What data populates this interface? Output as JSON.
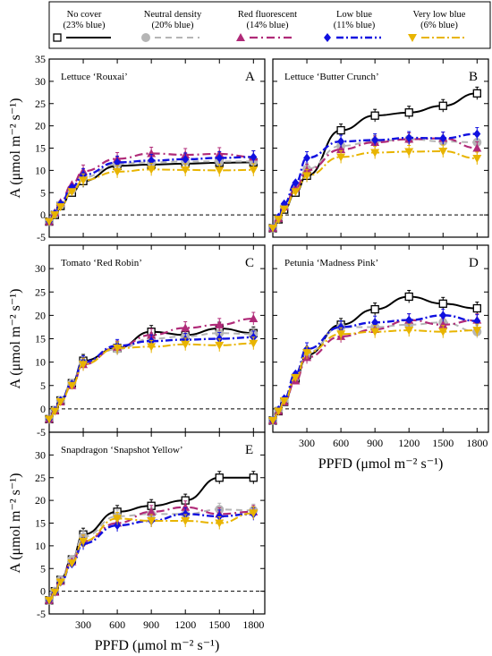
{
  "legend": {
    "entries": [
      {
        "name": "No cover",
        "sub": "(23% blue)",
        "color": "#000000",
        "marker": "square"
      },
      {
        "name": "Neutral density",
        "sub": "(20% blue)",
        "color": "#b5b5b5",
        "marker": "circle"
      },
      {
        "name": "Red fluorescent",
        "sub": "(14% blue)",
        "color": "#b02a78",
        "marker": "triangle-up"
      },
      {
        "name": "Low blue",
        "sub": "(11% blue)",
        "color": "#1010e0",
        "marker": "diamond"
      },
      {
        "name": "Very low blue",
        "sub": "(6% blue)",
        "color": "#e8b400",
        "marker": "triangle-down"
      }
    ]
  },
  "chart_data": [
    {
      "type": "line",
      "panel": "A",
      "title": "Lettuce ‘Rouxai’",
      "ylabel": "A (μmol m⁻² s⁻¹)",
      "xlabel": "",
      "ylim": [
        -5,
        35
      ],
      "xlim": [
        0,
        1900
      ],
      "x": [
        0,
        50,
        100,
        200,
        300,
        600,
        900,
        1200,
        1500,
        1800
      ],
      "series": [
        {
          "name": "No cover",
          "values": [
            -1.5,
            0.0,
            2.0,
            5.0,
            7.6,
            11.0,
            11.3,
            11.5,
            11.7,
            11.8
          ]
        },
        {
          "name": "Neutral density",
          "values": [
            -1.5,
            0.2,
            2.3,
            5.6,
            8.4,
            11.5,
            11.8,
            12.0,
            12.0,
            12.0
          ]
        },
        {
          "name": "Red fluorescent",
          "values": [
            -1.5,
            0.5,
            2.8,
            6.8,
            9.8,
            12.6,
            13.8,
            13.5,
            13.7,
            13.0
          ]
        },
        {
          "name": "Low blue",
          "values": [
            -1.5,
            0.3,
            2.5,
            6.2,
            9.0,
            11.8,
            12.2,
            12.5,
            12.8,
            13.0
          ]
        },
        {
          "name": "Very low blue",
          "values": [
            -1.5,
            0.0,
            1.8,
            5.2,
            7.8,
            9.7,
            10.2,
            10.1,
            10.0,
            10.1
          ]
        }
      ]
    },
    {
      "type": "line",
      "panel": "B",
      "title": "Lettuce ‘Butter Crunch’",
      "ylabel": "",
      "xlabel": "",
      "ylim": [
        -5,
        35
      ],
      "xlim": [
        0,
        1900
      ],
      "x": [
        0,
        50,
        100,
        200,
        300,
        600,
        900,
        1200,
        1500,
        1800
      ],
      "series": [
        {
          "name": "No cover",
          "values": [
            -3.0,
            -1.0,
            1.2,
            5.0,
            8.8,
            19.0,
            22.3,
            23.0,
            24.5,
            27.3
          ]
        },
        {
          "name": "Neutral density",
          "values": [
            -3.0,
            -0.8,
            1.8,
            6.2,
            10.3,
            15.5,
            16.5,
            17.0,
            16.5,
            16.3
          ]
        },
        {
          "name": "Red fluorescent",
          "values": [
            -3.0,
            -0.8,
            1.8,
            6.0,
            10.0,
            14.7,
            16.3,
            17.0,
            17.2,
            15.0
          ]
        },
        {
          "name": "Low blue",
          "values": [
            -3.0,
            -0.5,
            2.5,
            7.2,
            12.8,
            16.5,
            16.8,
            17.3,
            17.2,
            18.2
          ]
        },
        {
          "name": "Very low blue",
          "values": [
            -3.0,
            -1.0,
            1.3,
            5.2,
            8.8,
            13.0,
            14.0,
            14.2,
            14.3,
            12.7
          ]
        }
      ]
    },
    {
      "type": "line",
      "panel": "C",
      "title": "Tomato ‘Red Robin’",
      "ylabel": "A (μmol m⁻² s⁻¹)",
      "xlabel": "",
      "ylim": [
        -5,
        35
      ],
      "xlim": [
        0,
        1900
      ],
      "x": [
        0,
        50,
        100,
        200,
        300,
        600,
        900,
        1200,
        1500,
        1800
      ],
      "series": [
        {
          "name": "No cover",
          "values": [
            -2.2,
            -0.3,
            1.8,
            5.5,
            10.3,
            13.0,
            16.5,
            15.8,
            17.2,
            16.2
          ]
        },
        {
          "name": "Neutral density",
          "values": [
            -2.2,
            -0.3,
            1.8,
            5.5,
            9.8,
            12.8,
            15.0,
            15.5,
            16.2,
            16.0
          ]
        },
        {
          "name": "Red fluorescent",
          "values": [
            -2.2,
            -0.4,
            1.5,
            5.0,
            9.5,
            13.2,
            15.8,
            17.3,
            18.0,
            19.3
          ]
        },
        {
          "name": "Low blue",
          "values": [
            -2.2,
            -0.3,
            1.8,
            5.3,
            10.0,
            13.5,
            14.5,
            14.8,
            15.0,
            15.3
          ]
        },
        {
          "name": "Very low blue",
          "values": [
            -2.2,
            -0.5,
            1.5,
            5.0,
            9.5,
            13.0,
            13.3,
            13.8,
            13.6,
            14.0
          ]
        }
      ]
    },
    {
      "type": "line",
      "panel": "D",
      "title": "Petunia ‘Madness Pink’",
      "ylabel": "",
      "xlabel": "PPFD (μmol m⁻² s⁻¹)",
      "ylim": [
        -5,
        35
      ],
      "xlim": [
        0,
        1900
      ],
      "x": [
        0,
        50,
        100,
        200,
        300,
        600,
        900,
        1200,
        1500,
        1800
      ],
      "series": [
        {
          "name": "No cover",
          "values": [
            -2.5,
            -0.5,
            1.5,
            6.5,
            11.5,
            18.0,
            21.3,
            24.0,
            22.5,
            21.5
          ]
        },
        {
          "name": "Neutral density",
          "values": [
            -2.5,
            -0.3,
            1.8,
            6.8,
            12.0,
            17.5,
            17.5,
            18.0,
            18.5,
            16.5
          ]
        },
        {
          "name": "Red fluorescent",
          "values": [
            -2.5,
            -0.5,
            1.5,
            6.0,
            11.0,
            15.5,
            17.0,
            19.0,
            18.0,
            19.0
          ]
        },
        {
          "name": "Low blue",
          "values": [
            -2.5,
            -0.2,
            2.2,
            7.5,
            12.8,
            17.5,
            18.5,
            19.0,
            20.0,
            18.8
          ]
        },
        {
          "name": "Very low blue",
          "values": [
            -2.5,
            -0.5,
            1.7,
            6.7,
            12.0,
            16.0,
            16.5,
            16.8,
            16.5,
            16.8
          ]
        }
      ]
    },
    {
      "type": "line",
      "panel": "E",
      "title": "Snapdragon ‘Snapshot Yellow’",
      "ylabel": "A (μmol m⁻² s⁻¹)",
      "xlabel": "PPFD (μmol m⁻² s⁻¹)",
      "ylim": [
        -5,
        35
      ],
      "xlim": [
        0,
        1900
      ],
      "x": [
        0,
        50,
        100,
        200,
        300,
        600,
        900,
        1200,
        1500,
        1800
      ],
      "series": [
        {
          "name": "No cover",
          "values": [
            -2.0,
            0.0,
            2.5,
            7.0,
            12.5,
            17.5,
            18.8,
            20.0,
            25.0,
            25.0
          ]
        },
        {
          "name": "Neutral density",
          "values": [
            -2.0,
            0.0,
            2.5,
            7.0,
            12.0,
            16.5,
            17.0,
            17.0,
            18.0,
            17.8
          ]
        },
        {
          "name": "Red fluorescent",
          "values": [
            -2.0,
            -0.2,
            2.2,
            6.5,
            11.0,
            15.0,
            17.5,
            18.5,
            17.0,
            17.5
          ]
        },
        {
          "name": "Low blue",
          "values": [
            -2.0,
            -0.2,
            2.0,
            6.0,
            10.5,
            14.5,
            15.5,
            17.0,
            16.5,
            17.0
          ]
        },
        {
          "name": "Very low blue",
          "values": [
            -2.0,
            -0.2,
            2.0,
            6.2,
            11.0,
            16.0,
            15.5,
            15.5,
            15.0,
            17.2
          ]
        }
      ]
    }
  ]
}
